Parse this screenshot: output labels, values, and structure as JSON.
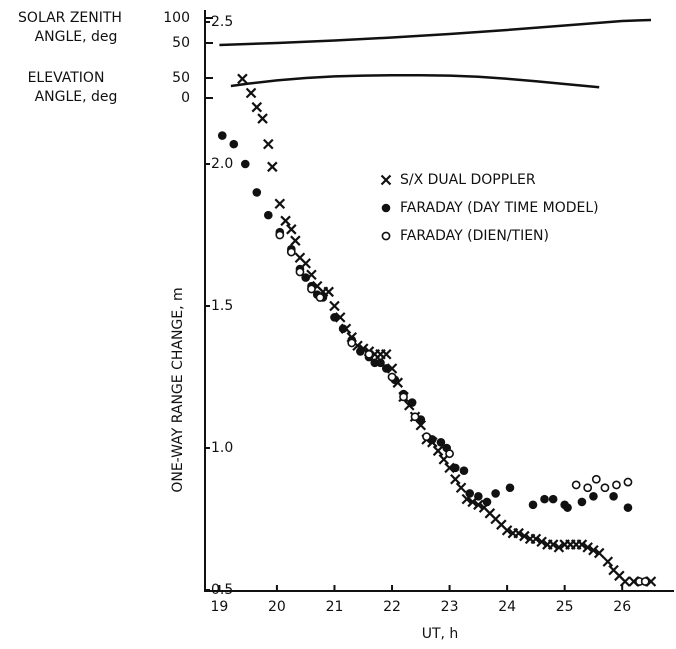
{
  "chart_data": [
    {
      "type": "line",
      "ylabel": [
        "SOLAR ZENITH",
        "ANGLE, deg"
      ],
      "ylim": [
        40,
        116
      ],
      "yticks": [
        50,
        100
      ],
      "series": [
        {
          "color": "#111111",
          "x": [
            19,
            20,
            21,
            22,
            23,
            24,
            25,
            26,
            26.5
          ],
          "values": [
            46,
            50,
            55,
            61,
            68,
            76,
            85,
            94,
            96
          ]
        }
      ]
    },
    {
      "type": "line",
      "ylabel": [
        "ELEVATION",
        "ANGLE, deg"
      ],
      "ylim": [
        -5,
        70
      ],
      "yticks": [
        0,
        50
      ],
      "series": [
        {
          "color": "#111111",
          "x": [
            19.2,
            19.5,
            20,
            20.5,
            21,
            21.5,
            22,
            22.5,
            23,
            23.5,
            24,
            24.5,
            25,
            25.6
          ],
          "values": [
            30,
            36,
            44,
            50,
            54,
            56,
            57,
            57,
            56,
            53,
            48,
            42,
            35,
            27
          ]
        }
      ]
    },
    {
      "type": "scatter",
      "xlabel": "UT, h",
      "ylabel": "ONE-WAY RANGE CHANGE, m",
      "xlim": [
        18.75,
        26.9
      ],
      "xticks": [
        19,
        20,
        21,
        22,
        23,
        24,
        25,
        26
      ],
      "ylim": [
        0.5,
        2.5
      ],
      "yticks": [
        {
          "value": 0.5,
          "label": "0.5"
        },
        {
          "value": 1,
          "label": "1.0"
        },
        {
          "value": 1.5,
          "label": "1.5"
        },
        {
          "value": 2,
          "label": "2.0"
        },
        {
          "value": 2.5,
          "label": "2.5"
        }
      ],
      "series": [
        {
          "name": "S/X DUAL DOPPLER",
          "marker": "x",
          "color": "#111111",
          "x": [
            19.4,
            19.55,
            19.65,
            19.75,
            19.85,
            19.92,
            20.05,
            20.15,
            20.25,
            20.32,
            20.4,
            20.5,
            20.6,
            20.7,
            20.8,
            20.9,
            21.0,
            21.1,
            21.2,
            21.3,
            21.4,
            21.5,
            21.6,
            21.7,
            21.8,
            21.9,
            22.0,
            22.1,
            22.2,
            22.3,
            22.4,
            22.5,
            22.6,
            22.7,
            22.8,
            22.9,
            23.0,
            23.1,
            23.2,
            23.3,
            23.4,
            23.5,
            23.6,
            23.7,
            23.8,
            23.9,
            24.0,
            24.1,
            24.2,
            24.3,
            24.4,
            24.5,
            24.6,
            24.7,
            24.8,
            24.9,
            25.0,
            25.1,
            25.2,
            25.3,
            25.4,
            25.5,
            25.6,
            25.75,
            25.85,
            25.95,
            26.05,
            26.2,
            26.35,
            26.5
          ],
          "values": [
            2.3,
            2.25,
            2.2,
            2.16,
            2.07,
            1.99,
            1.86,
            1.8,
            1.77,
            1.73,
            1.67,
            1.65,
            1.61,
            1.57,
            1.55,
            1.55,
            1.5,
            1.46,
            1.42,
            1.39,
            1.36,
            1.35,
            1.34,
            1.33,
            1.33,
            1.33,
            1.28,
            1.23,
            1.18,
            1.15,
            1.11,
            1.08,
            1.03,
            1.02,
            0.99,
            0.96,
            0.93,
            0.89,
            0.86,
            0.82,
            0.81,
            0.8,
            0.79,
            0.77,
            0.75,
            0.73,
            0.71,
            0.7,
            0.7,
            0.69,
            0.68,
            0.68,
            0.67,
            0.66,
            0.66,
            0.65,
            0.66,
            0.66,
            0.66,
            0.66,
            0.65,
            0.64,
            0.63,
            0.6,
            0.57,
            0.55,
            0.53,
            0.53,
            0.53,
            0.53
          ]
        },
        {
          "name": "FARADAY (DAY TIME MODEL)",
          "marker": "dot",
          "color": "#111111",
          "x": [
            19.05,
            19.25,
            19.45,
            19.65,
            19.85,
            20.05,
            20.25,
            20.4,
            20.5,
            20.6,
            20.7,
            20.8,
            21.0,
            21.15,
            21.3,
            21.45,
            21.6,
            21.7,
            21.8,
            21.9,
            22.05,
            22.2,
            22.35,
            22.5,
            22.7,
            22.85,
            22.95,
            23.1,
            23.25,
            23.35,
            23.5,
            23.65,
            23.8,
            24.05,
            24.45,
            24.65,
            24.8,
            25.0,
            25.05,
            25.3,
            25.5,
            25.85,
            26.1
          ],
          "values": [
            2.1,
            2.07,
            2.0,
            1.9,
            1.82,
            1.76,
            1.7,
            1.63,
            1.6,
            1.57,
            1.54,
            1.53,
            1.46,
            1.42,
            1.38,
            1.34,
            1.32,
            1.3,
            1.3,
            1.28,
            1.24,
            1.19,
            1.16,
            1.1,
            1.03,
            1.02,
            1.0,
            0.93,
            0.92,
            0.84,
            0.83,
            0.81,
            0.84,
            0.86,
            0.8,
            0.82,
            0.82,
            0.8,
            0.79,
            0.81,
            0.83,
            0.83,
            0.79
          ]
        },
        {
          "name": "FARADAY (DIEN/TIEN)",
          "marker": "circle",
          "color": "#111111",
          "x": [
            20.05,
            20.25,
            20.4,
            20.6,
            20.75,
            21.3,
            21.6,
            22.0,
            22.2,
            22.4,
            22.6,
            23.0,
            25.2,
            25.4,
            25.55,
            25.7,
            25.9,
            26.1,
            26.3,
            26.4
          ],
          "values": [
            1.75,
            1.69,
            1.62,
            1.56,
            1.53,
            1.37,
            1.33,
            1.25,
            1.18,
            1.11,
            1.04,
            0.98,
            0.87,
            0.86,
            0.89,
            0.86,
            0.87,
            0.88,
            0.53,
            0.53
          ]
        }
      ]
    }
  ]
}
